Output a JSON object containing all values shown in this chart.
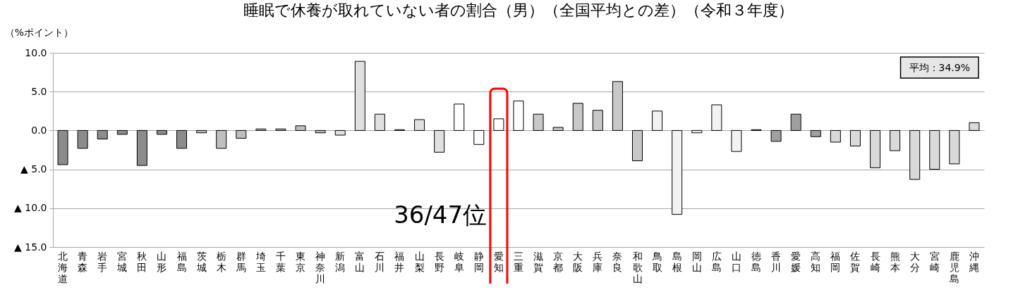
{
  "chart_data": {
    "type": "bar",
    "title": "睡眠で休養が取れていない者の割合（男）（全国平均との差）（令和３年度）",
    "ylabel": "（%ポイント）",
    "categories": [
      "北海道",
      "青森",
      "岩手",
      "宮城",
      "秋田",
      "山形",
      "福島",
      "茨城",
      "栃木",
      "群馬",
      "埼玉",
      "千葉",
      "東京",
      "神奈川",
      "新潟",
      "富山",
      "石川",
      "福井",
      "山梨",
      "長野",
      "岐阜",
      "静岡",
      "愛知",
      "三重",
      "滋賀",
      "京都",
      "大阪",
      "兵庫",
      "奈良",
      "和歌山",
      "鳥取",
      "島根",
      "岡山",
      "広島",
      "山口",
      "徳島",
      "香川",
      "愛媛",
      "高知",
      "福岡",
      "佐賀",
      "長崎",
      "熊本",
      "大分",
      "宮崎",
      "鹿児島",
      "沖縄"
    ],
    "values": [
      -4.4,
      -2.3,
      -1.1,
      -0.5,
      -4.5,
      -0.5,
      -2.3,
      -0.3,
      -2.3,
      -1.0,
      0.2,
      0.2,
      0.6,
      -0.3,
      -0.6,
      8.9,
      2.1,
      0.1,
      1.4,
      -2.8,
      3.4,
      -1.8,
      1.5,
      3.8,
      2.1,
      0.4,
      3.5,
      2.6,
      6.3,
      -3.9,
      2.5,
      -10.8,
      -0.3,
      3.3,
      -2.7,
      0.1,
      -1.4,
      2.1,
      -0.8,
      -1.5,
      -2.0,
      -4.8,
      -2.6,
      -6.3,
      -5.0,
      -4.3,
      1.0
    ],
    "colors": [
      "#8c8c8c",
      "#8c8c8c",
      "#8c8c8c",
      "#8c8c8c",
      "#8c8c8c",
      "#8c8c8c",
      "#8c8c8c",
      "#bfbfbf",
      "#bfbfbf",
      "#bfbfbf",
      "#bfbfbf",
      "#bfbfbf",
      "#bfbfbf",
      "#bfbfbf",
      "#e0e0e0",
      "#e0e0e0",
      "#e0e0e0",
      "#e0e0e0",
      "#e0e0e0",
      "#e0e0e0",
      "#ffffff",
      "#ffffff",
      "#ffffff",
      "#ffffff",
      "#c8c8c8",
      "#c8c8c8",
      "#c8c8c8",
      "#c8c8c8",
      "#c8c8c8",
      "#c8c8c8",
      "#f2f2f2",
      "#f2f2f2",
      "#f2f2f2",
      "#f2f2f2",
      "#f2f2f2",
      "#a0a0a0",
      "#a0a0a0",
      "#a0a0a0",
      "#a0a0a0",
      "#d9d9d9",
      "#d9d9d9",
      "#d9d9d9",
      "#d9d9d9",
      "#d9d9d9",
      "#d9d9d9",
      "#d9d9d9",
      "#d9d9d9"
    ],
    "ylim": [
      -15,
      10
    ],
    "yticks": [
      {
        "value": 10,
        "label": "10.0"
      },
      {
        "value": 5,
        "label": "5.0"
      },
      {
        "value": 0,
        "label": "0.0"
      },
      {
        "value": -5,
        "label": "▲ 5.0"
      },
      {
        "value": -10,
        "label": "▲ 10.0"
      },
      {
        "value": -15,
        "label": "▲ 15.0"
      }
    ],
    "grid": "y",
    "annotations": [
      "平均：34.9%",
      "36/47位"
    ]
  }
}
